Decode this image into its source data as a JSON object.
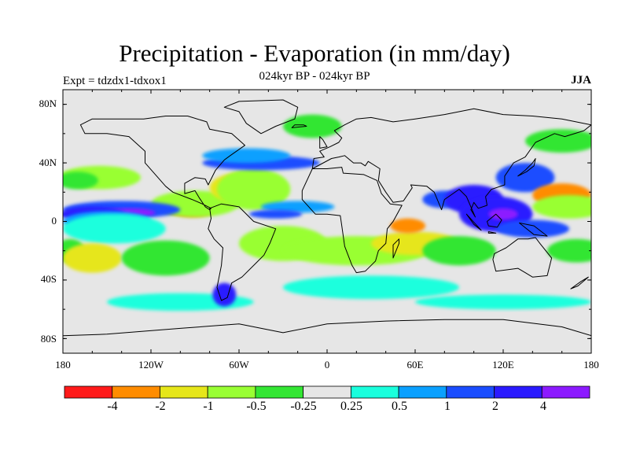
{
  "title": "Precipitation - Evaporation (in mm/day)",
  "subtitle": "024kyr BP - 024kyr BP",
  "experiment": "Expt = tdzdx1-tdxox1",
  "season": "JJA",
  "colors": {
    "land": "#e6e6e6",
    "coast": "#000000",
    "scale": [
      "#ff1a1a",
      "#ff8c00",
      "#e6e61a",
      "#99ff33",
      "#33e633",
      "#e6e6e6",
      "#1affdd",
      "#0aa0ff",
      "#1a4dff",
      "#2a1aff",
      "#8c1aff"
    ]
  },
  "chart_data": {
    "type": "heatmap",
    "title": "Precipitation - Evaporation (in mm/day)",
    "variable": "P - E",
    "units": "mm/day",
    "lon_range": [
      -180,
      180
    ],
    "lat_range": [
      -90,
      90
    ],
    "x_ticks": [
      "180",
      "120W",
      "60W",
      "0",
      "60E",
      "120E",
      "180"
    ],
    "y_ticks": [
      "80N",
      "40N",
      "0",
      "40S",
      "80S"
    ],
    "colorbar_levels": [
      "-4",
      "-2",
      "-1",
      "-0.5",
      "-0.25",
      "0.25",
      "0.5",
      "1",
      "2",
      "4"
    ],
    "blobs": [
      {
        "lon": -100,
        "lat": 9,
        "rlon": 12,
        "rlat": 4,
        "level": 0
      },
      {
        "lon": -92,
        "lat": 10,
        "rlon": 18,
        "rlat": 7,
        "level": 1
      },
      {
        "lon": -90,
        "lat": 12,
        "rlon": 30,
        "rlat": 9,
        "level": 3
      },
      {
        "lon": -140,
        "lat": 8,
        "rlon": 40,
        "rlat": 6,
        "level": 8
      },
      {
        "lon": -135,
        "lat": 6,
        "rlon": 18,
        "rlat": 3,
        "level": 10
      },
      {
        "lon": -160,
        "lat": 5,
        "rlon": 22,
        "rlat": 5,
        "level": 9
      },
      {
        "lon": -150,
        "lat": 0,
        "rlon": 30,
        "rlat": 7,
        "level": 7
      },
      {
        "lon": -145,
        "lat": -5,
        "rlon": 35,
        "rlat": 10,
        "level": 6
      },
      {
        "lon": -155,
        "lat": 30,
        "rlon": 28,
        "rlat": 8,
        "level": 3
      },
      {
        "lon": -170,
        "lat": 28,
        "rlon": 14,
        "rlat": 6,
        "level": 4
      },
      {
        "lon": -60,
        "lat": 23,
        "rlon": 20,
        "rlat": 10,
        "level": 2
      },
      {
        "lon": -50,
        "lat": 22,
        "rlon": 25,
        "rlat": 14,
        "level": 3
      },
      {
        "lon": -45,
        "lat": 40,
        "rlon": 40,
        "rlat": 5,
        "level": 8
      },
      {
        "lon": -55,
        "lat": 45,
        "rlon": 30,
        "rlat": 5,
        "level": 7
      },
      {
        "lon": -20,
        "lat": 10,
        "rlon": 25,
        "rlat": 4,
        "level": 7
      },
      {
        "lon": -35,
        "lat": 5,
        "rlon": 18,
        "rlat": 3,
        "level": 8
      },
      {
        "lon": -30,
        "lat": -15,
        "rlon": 30,
        "rlat": 12,
        "level": 3
      },
      {
        "lon": 20,
        "lat": -20,
        "rlon": 50,
        "rlat": 10,
        "level": 3
      },
      {
        "lon": 60,
        "lat": -15,
        "rlon": 30,
        "rlat": 8,
        "level": 2
      },
      {
        "lon": 55,
        "lat": -3,
        "rlon": 12,
        "rlat": 5,
        "level": 1
      },
      {
        "lon": 90,
        "lat": -20,
        "rlon": 25,
        "rlat": 10,
        "level": 4
      },
      {
        "lon": 30,
        "lat": -45,
        "rlon": 60,
        "rlat": 8,
        "level": 6
      },
      {
        "lon": -100,
        "lat": -55,
        "rlon": 50,
        "rlat": 6,
        "level": 6
      },
      {
        "lon": 120,
        "lat": -55,
        "rlon": 60,
        "rlat": 5,
        "level": 6
      },
      {
        "lon": 80,
        "lat": 15,
        "rlon": 15,
        "rlat": 6,
        "level": 8
      },
      {
        "lon": 100,
        "lat": 15,
        "rlon": 20,
        "rlat": 10,
        "level": 9
      },
      {
        "lon": 115,
        "lat": 5,
        "rlon": 25,
        "rlat": 12,
        "level": 9
      },
      {
        "lon": 120,
        "lat": 5,
        "rlon": 10,
        "rlat": 4,
        "level": 10
      },
      {
        "lon": 140,
        "lat": -5,
        "rlon": 25,
        "rlat": 6,
        "level": 8
      },
      {
        "lon": 135,
        "lat": 30,
        "rlon": 20,
        "rlat": 10,
        "level": 8
      },
      {
        "lon": 160,
        "lat": 18,
        "rlon": 20,
        "rlat": 8,
        "level": 1
      },
      {
        "lon": 165,
        "lat": 10,
        "rlon": 25,
        "rlat": 8,
        "level": 3
      },
      {
        "lon": 170,
        "lat": -20,
        "rlon": 20,
        "rlat": 8,
        "level": 4
      },
      {
        "lon": -175,
        "lat": -20,
        "rlon": 10,
        "rlat": 8,
        "level": 4
      },
      {
        "lon": -160,
        "lat": -25,
        "rlon": 20,
        "rlat": 10,
        "level": 2
      },
      {
        "lon": -110,
        "lat": -25,
        "rlon": 30,
        "rlat": 12,
        "level": 4
      },
      {
        "lon": -70,
        "lat": -50,
        "rlon": 8,
        "rlat": 8,
        "level": 9
      },
      {
        "lon": 160,
        "lat": 55,
        "rlon": 25,
        "rlat": 8,
        "level": 4
      },
      {
        "lon": -10,
        "lat": 65,
        "rlon": 20,
        "rlat": 8,
        "level": 4
      }
    ]
  },
  "land": [
    [
      [
        -168,
        66
      ],
      [
        -160,
        70
      ],
      [
        -140,
        70
      ],
      [
        -125,
        70
      ],
      [
        -110,
        72
      ],
      [
        -95,
        72
      ],
      [
        -82,
        68
      ],
      [
        -80,
        63
      ],
      [
        -65,
        60
      ],
      [
        -56,
        52
      ],
      [
        -66,
        45
      ],
      [
        -70,
        42
      ],
      [
        -76,
        35
      ],
      [
        -81,
        25
      ],
      [
        -83,
        29
      ],
      [
        -90,
        30
      ],
      [
        -97,
        26
      ],
      [
        -97,
        19
      ],
      [
        -90,
        21
      ],
      [
        -87,
        16
      ],
      [
        -83,
        10
      ],
      [
        -80,
        8
      ],
      [
        -79,
        9
      ],
      [
        -85,
        12
      ],
      [
        -92,
        15
      ],
      [
        -105,
        20
      ],
      [
        -110,
        24
      ],
      [
        -117,
        32
      ],
      [
        -124,
        40
      ],
      [
        -124,
        48
      ],
      [
        -135,
        58
      ],
      [
        -150,
        60
      ],
      [
        -165,
        60
      ],
      [
        -168,
        66
      ]
    ],
    [
      [
        -80,
        9
      ],
      [
        -72,
        12
      ],
      [
        -60,
        10
      ],
      [
        -50,
        0
      ],
      [
        -35,
        -5
      ],
      [
        -39,
        -15
      ],
      [
        -43,
        -23
      ],
      [
        -48,
        -28
      ],
      [
        -58,
        -38
      ],
      [
        -65,
        -42
      ],
      [
        -68,
        -52
      ],
      [
        -72,
        -54
      ],
      [
        -75,
        -45
      ],
      [
        -72,
        -30
      ],
      [
        -71,
        -18
      ],
      [
        -77,
        -12
      ],
      [
        -81,
        -5
      ],
      [
        -79,
        2
      ],
      [
        -80,
        9
      ]
    ],
    [
      [
        -45,
        60
      ],
      [
        -55,
        67
      ],
      [
        -60,
        75
      ],
      [
        -70,
        78
      ],
      [
        -60,
        82
      ],
      [
        -30,
        83
      ],
      [
        -20,
        78
      ],
      [
        -22,
        70
      ],
      [
        -35,
        65
      ],
      [
        -45,
        60
      ]
    ],
    [
      [
        -10,
        36
      ],
      [
        -17,
        21
      ],
      [
        -17,
        15
      ],
      [
        -8,
        5
      ],
      [
        0,
        5
      ],
      [
        9,
        4
      ],
      [
        10,
        -3
      ],
      [
        12,
        -17
      ],
      [
        17,
        -30
      ],
      [
        20,
        -35
      ],
      [
        26,
        -34
      ],
      [
        33,
        -27
      ],
      [
        35,
        -20
      ],
      [
        40,
        -15
      ],
      [
        41,
        -5
      ],
      [
        45,
        0
      ],
      [
        51,
        11
      ],
      [
        43,
        12
      ],
      [
        37,
        19
      ],
      [
        34,
        28
      ],
      [
        25,
        32
      ],
      [
        11,
        33
      ],
      [
        10,
        37
      ],
      [
        0,
        36
      ],
      [
        -10,
        36
      ]
    ],
    [
      [
        -10,
        36
      ],
      [
        -9,
        43
      ],
      [
        -2,
        44
      ],
      [
        -5,
        48
      ],
      [
        2,
        51
      ],
      [
        8,
        54
      ],
      [
        10,
        57
      ],
      [
        5,
        62
      ],
      [
        12,
        66
      ],
      [
        20,
        70
      ],
      [
        30,
        71
      ],
      [
        45,
        68
      ],
      [
        60,
        70
      ],
      [
        80,
        73
      ],
      [
        100,
        77
      ],
      [
        120,
        73
      ],
      [
        140,
        72
      ],
      [
        160,
        70
      ],
      [
        180,
        66
      ],
      [
        175,
        62
      ],
      [
        162,
        58
      ],
      [
        155,
        60
      ],
      [
        142,
        54
      ],
      [
        135,
        44
      ],
      [
        127,
        40
      ],
      [
        121,
        31
      ],
      [
        121,
        25
      ],
      [
        112,
        22
      ],
      [
        108,
        17
      ],
      [
        109,
        11
      ],
      [
        103,
        9
      ],
      [
        100,
        13
      ],
      [
        98,
        8
      ],
      [
        101,
        3
      ],
      [
        98,
        10
      ],
      [
        95,
        17
      ],
      [
        90,
        22
      ],
      [
        80,
        15
      ],
      [
        78,
        8
      ],
      [
        73,
        20
      ],
      [
        68,
        24
      ],
      [
        57,
        25
      ],
      [
        58,
        23
      ],
      [
        52,
        14
      ],
      [
        45,
        13
      ],
      [
        40,
        20
      ],
      [
        35,
        28
      ],
      [
        36,
        36
      ],
      [
        28,
        41
      ],
      [
        26,
        38
      ],
      [
        23,
        40
      ],
      [
        18,
        40
      ],
      [
        12,
        45
      ],
      [
        8,
        44
      ],
      [
        3,
        43
      ],
      [
        -10,
        36
      ]
    ],
    [
      [
        114,
        -22
      ],
      [
        122,
        -18
      ],
      [
        130,
        -12
      ],
      [
        137,
        -12
      ],
      [
        142,
        -11
      ],
      [
        145,
        -15
      ],
      [
        153,
        -25
      ],
      [
        150,
        -37
      ],
      [
        140,
        -38
      ],
      [
        135,
        -35
      ],
      [
        130,
        -32
      ],
      [
        115,
        -34
      ],
      [
        113,
        -26
      ],
      [
        114,
        -22
      ]
    ],
    [
      [
        -180,
        -78
      ],
      [
        -150,
        -77
      ],
      [
        -100,
        -73
      ],
      [
        -60,
        -70
      ],
      [
        -30,
        -76
      ],
      [
        0,
        -70
      ],
      [
        40,
        -68
      ],
      [
        80,
        -67
      ],
      [
        120,
        -67
      ],
      [
        160,
        -72
      ],
      [
        180,
        -78
      ],
      [
        180,
        -90
      ],
      [
        -180,
        -90
      ]
    ],
    [
      [
        95,
        5
      ],
      [
        105,
        -6
      ],
      [
        100,
        -2
      ],
      [
        95,
        5
      ]
    ],
    [
      [
        110,
        -8
      ],
      [
        115,
        -8
      ],
      [
        110,
        -7
      ],
      [
        110,
        -8
      ]
    ],
    [
      [
        109,
        0
      ],
      [
        115,
        5
      ],
      [
        119,
        1
      ],
      [
        116,
        -4
      ],
      [
        110,
        -3
      ],
      [
        109,
        0
      ]
    ],
    [
      [
        131,
        -1
      ],
      [
        141,
        -3
      ],
      [
        150,
        -10
      ],
      [
        141,
        -9
      ],
      [
        131,
        -1
      ]
    ],
    [
      [
        130,
        31
      ],
      [
        136,
        34
      ],
      [
        141,
        38
      ],
      [
        142,
        43
      ],
      [
        140,
        40
      ],
      [
        135,
        35
      ],
      [
        130,
        31
      ]
    ],
    [
      [
        -5,
        50
      ],
      [
        0,
        51
      ],
      [
        -3,
        56
      ],
      [
        -5,
        58
      ],
      [
        -5,
        50
      ]
    ],
    [
      [
        45,
        -25
      ],
      [
        49,
        -15
      ],
      [
        49,
        -12
      ],
      [
        45,
        -16
      ],
      [
        45,
        -25
      ]
    ],
    [
      [
        166,
        -46
      ],
      [
        173,
        -41
      ],
      [
        178,
        -38
      ],
      [
        171,
        -44
      ],
      [
        166,
        -46
      ]
    ],
    [
      [
        -24,
        64
      ],
      [
        -14,
        65
      ],
      [
        -16,
        66
      ],
      [
        -22,
        66
      ],
      [
        -24,
        64
      ]
    ]
  ]
}
